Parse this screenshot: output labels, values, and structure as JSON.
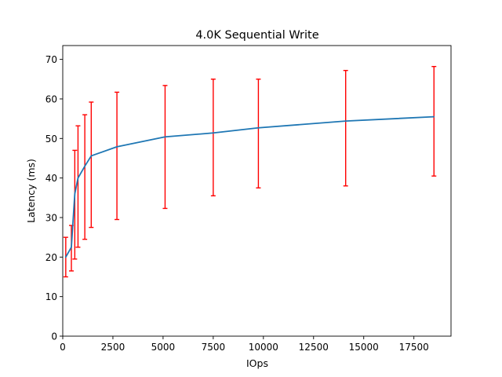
{
  "chart_data": {
    "type": "line",
    "title": "4.0K  Sequential Write",
    "xlabel": "IOps",
    "ylabel": "Latency (ms)",
    "xlim": [
      0,
      19350
    ],
    "ylim": [
      0,
      73.5
    ],
    "xticks": [
      0,
      2500,
      5000,
      7500,
      10000,
      12500,
      15000,
      17500
    ],
    "yticks": [
      0,
      10,
      20,
      30,
      40,
      50,
      60,
      70
    ],
    "grid": false,
    "colors": {
      "line": "#1f77b4",
      "error": "#ff0000"
    },
    "series": [
      {
        "x": [
          150,
          430,
          600,
          760,
          1100,
          1420,
          2700,
          5100,
          7500,
          9750,
          14100,
          18500
        ],
        "y": [
          20.0,
          22.5,
          36.0,
          40.0,
          43.0,
          45.6,
          47.9,
          50.4,
          51.4,
          52.7,
          54.4,
          55.5
        ],
        "err_low": [
          15.0,
          16.5,
          19.5,
          22.5,
          24.5,
          27.5,
          29.5,
          32.3,
          35.5,
          37.5,
          38.0,
          40.5
        ],
        "err_high": [
          25.0,
          28.0,
          47.0,
          53.2,
          56.0,
          59.2,
          61.7,
          63.4,
          65.0,
          65.0,
          67.2,
          68.2
        ]
      }
    ]
  }
}
